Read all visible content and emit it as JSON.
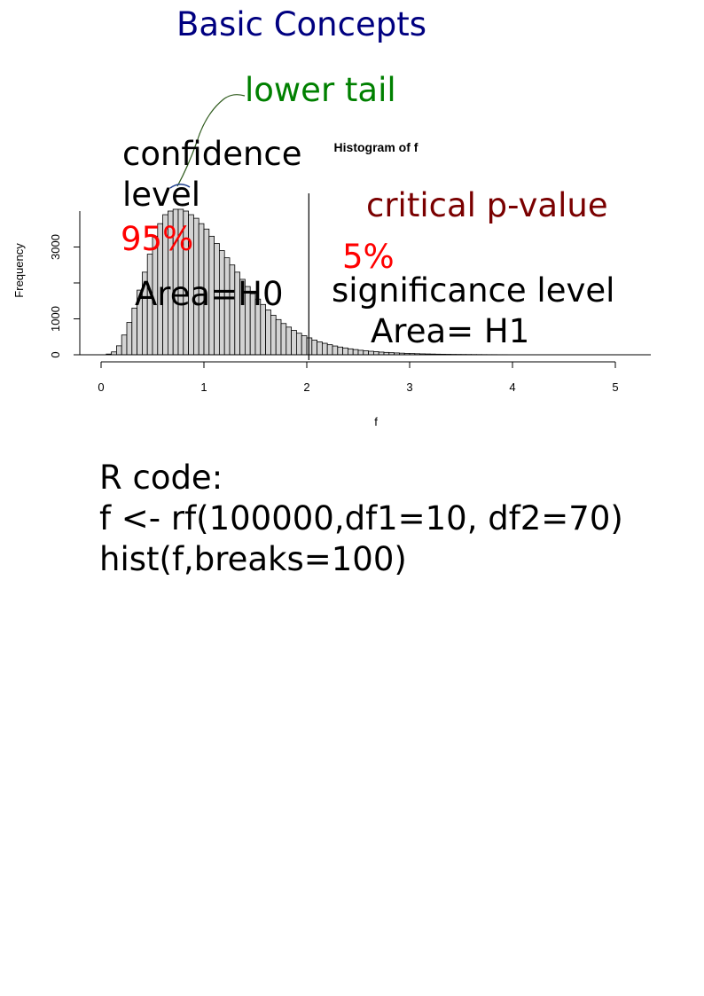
{
  "slide": {
    "title": "Basic Concepts",
    "title_color": "#000080"
  },
  "annotations": {
    "lower_tail": "lower tail",
    "lower_tail_color": "#008000",
    "confidence_line1": "confidence",
    "confidence_line2": "level",
    "confidence_pct": "95%",
    "area_h0": "Area=H0",
    "critical": "critical p-value",
    "critical_color": "#7a0000",
    "critical_pct": "5%",
    "pct_color": "#ff0000",
    "significance": "significance level",
    "area_h1": "Area= H1"
  },
  "code": {
    "heading": "R code:",
    "line1": "f <- rf(100000,df1=10, df2=70)",
    "line2": "hist(f,breaks=100)"
  },
  "chart_data": {
    "type": "bar",
    "title": "Histogram of f",
    "xlabel": "f",
    "ylabel": "Frequency",
    "bin_width": 0.05,
    "x_start": 0.05,
    "xlim": [
      0,
      5.3
    ],
    "ylim": [
      0,
      4000
    ],
    "x_ticks": [
      0,
      1,
      2,
      3,
      4,
      5
    ],
    "y_ticks": [
      0,
      1000,
      2000,
      3000
    ],
    "y_tick_labels": [
      "0",
      "1000",
      "",
      "3000"
    ],
    "critical_value": 2.02,
    "bar_fill": "#d3d3d3",
    "values": [
      20,
      80,
      250,
      550,
      900,
      1300,
      1800,
      2300,
      2800,
      3300,
      3650,
      3900,
      4000,
      4050,
      4050,
      4000,
      3900,
      3800,
      3650,
      3500,
      3300,
      3100,
      2900,
      2700,
      2500,
      2300,
      2100,
      1900,
      1700,
      1550,
      1400,
      1250,
      1100,
      980,
      870,
      770,
      680,
      600,
      530,
      470,
      410,
      360,
      320,
      280,
      245,
      215,
      190,
      165,
      145,
      125,
      110,
      98,
      86,
      75,
      66,
      58,
      51,
      45,
      39,
      34,
      30,
      26,
      23,
      20,
      17,
      15,
      13,
      11,
      10,
      9,
      8,
      7,
      6,
      5,
      4,
      4,
      3,
      3,
      2,
      2,
      2,
      1,
      1,
      1,
      1,
      1,
      1,
      1,
      1,
      1
    ]
  }
}
